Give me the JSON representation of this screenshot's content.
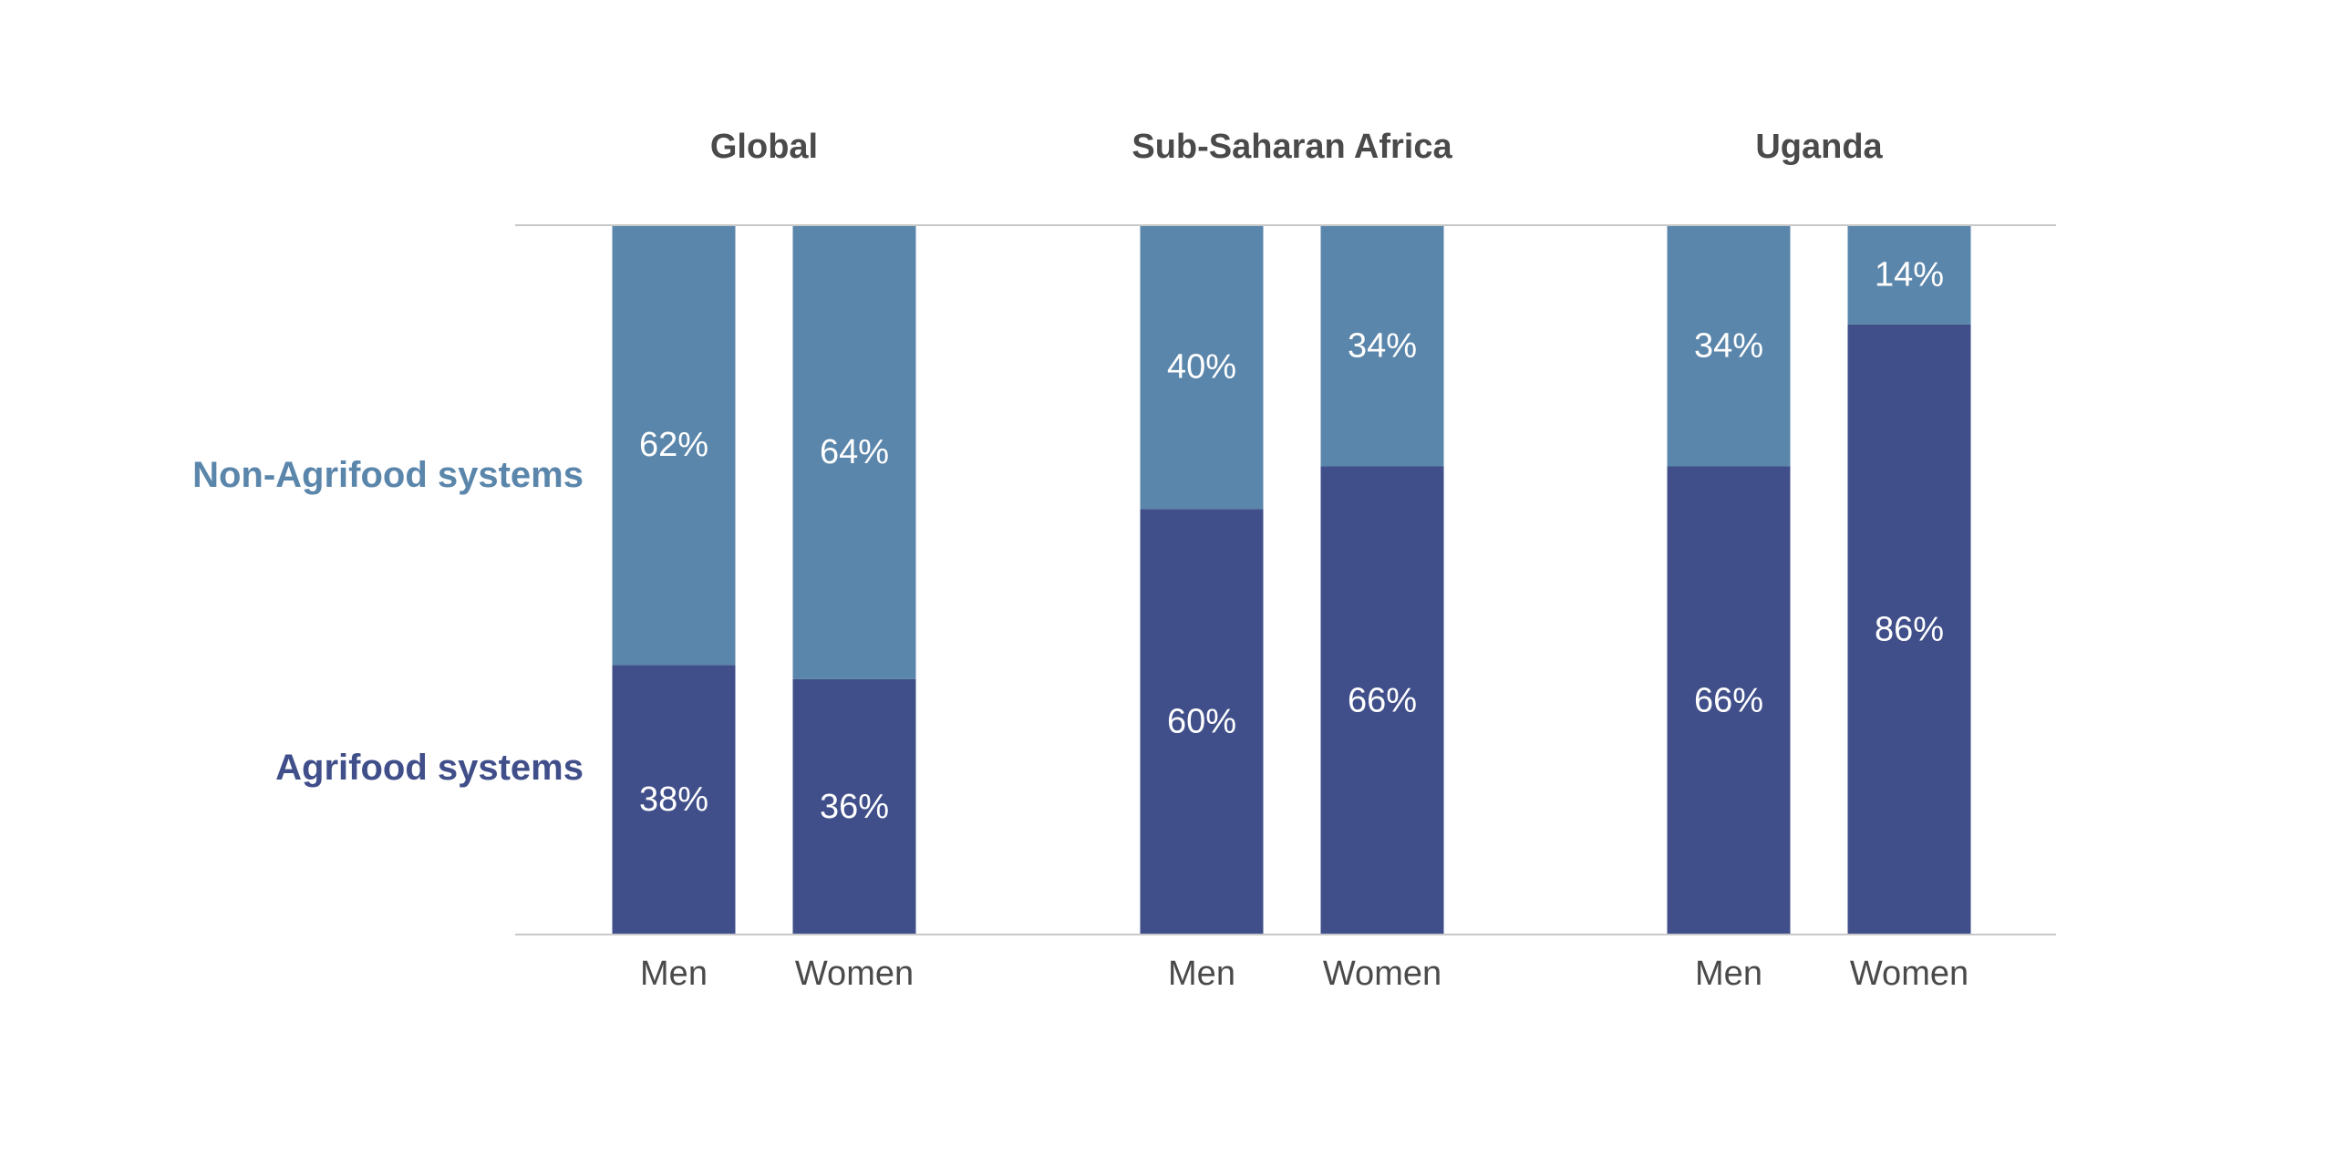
{
  "chart_data": {
    "type": "bar",
    "stacked": true,
    "percent_stacked": true,
    "groups": [
      "Global",
      "Sub-Saharan Africa",
      "Uganda"
    ],
    "categories": [
      "Men",
      "Women"
    ],
    "series": [
      {
        "name": "Agrifood systems",
        "color": "#404f8a",
        "values": [
          [
            38,
            36
          ],
          [
            60,
            66
          ],
          [
            66,
            86
          ]
        ],
        "labels": [
          [
            "38%",
            "36%"
          ],
          [
            "60%",
            "66%"
          ],
          [
            "66%",
            "86%"
          ]
        ]
      },
      {
        "name": "Non-Agrifood systems",
        "color": "#5b86ab",
        "values": [
          [
            62,
            64
          ],
          [
            40,
            34
          ],
          [
            34,
            14
          ]
        ],
        "labels": [
          [
            "62%",
            "64%"
          ],
          [
            "40%",
            "34%"
          ],
          [
            "34%",
            "14%"
          ]
        ]
      }
    ],
    "ylim": [
      0,
      100
    ],
    "grid": false,
    "legend_placement": "left",
    "label_color": "#ffffff",
    "text_color": "#4a4a4a",
    "axis_line_color": "#c8c8c8"
  }
}
